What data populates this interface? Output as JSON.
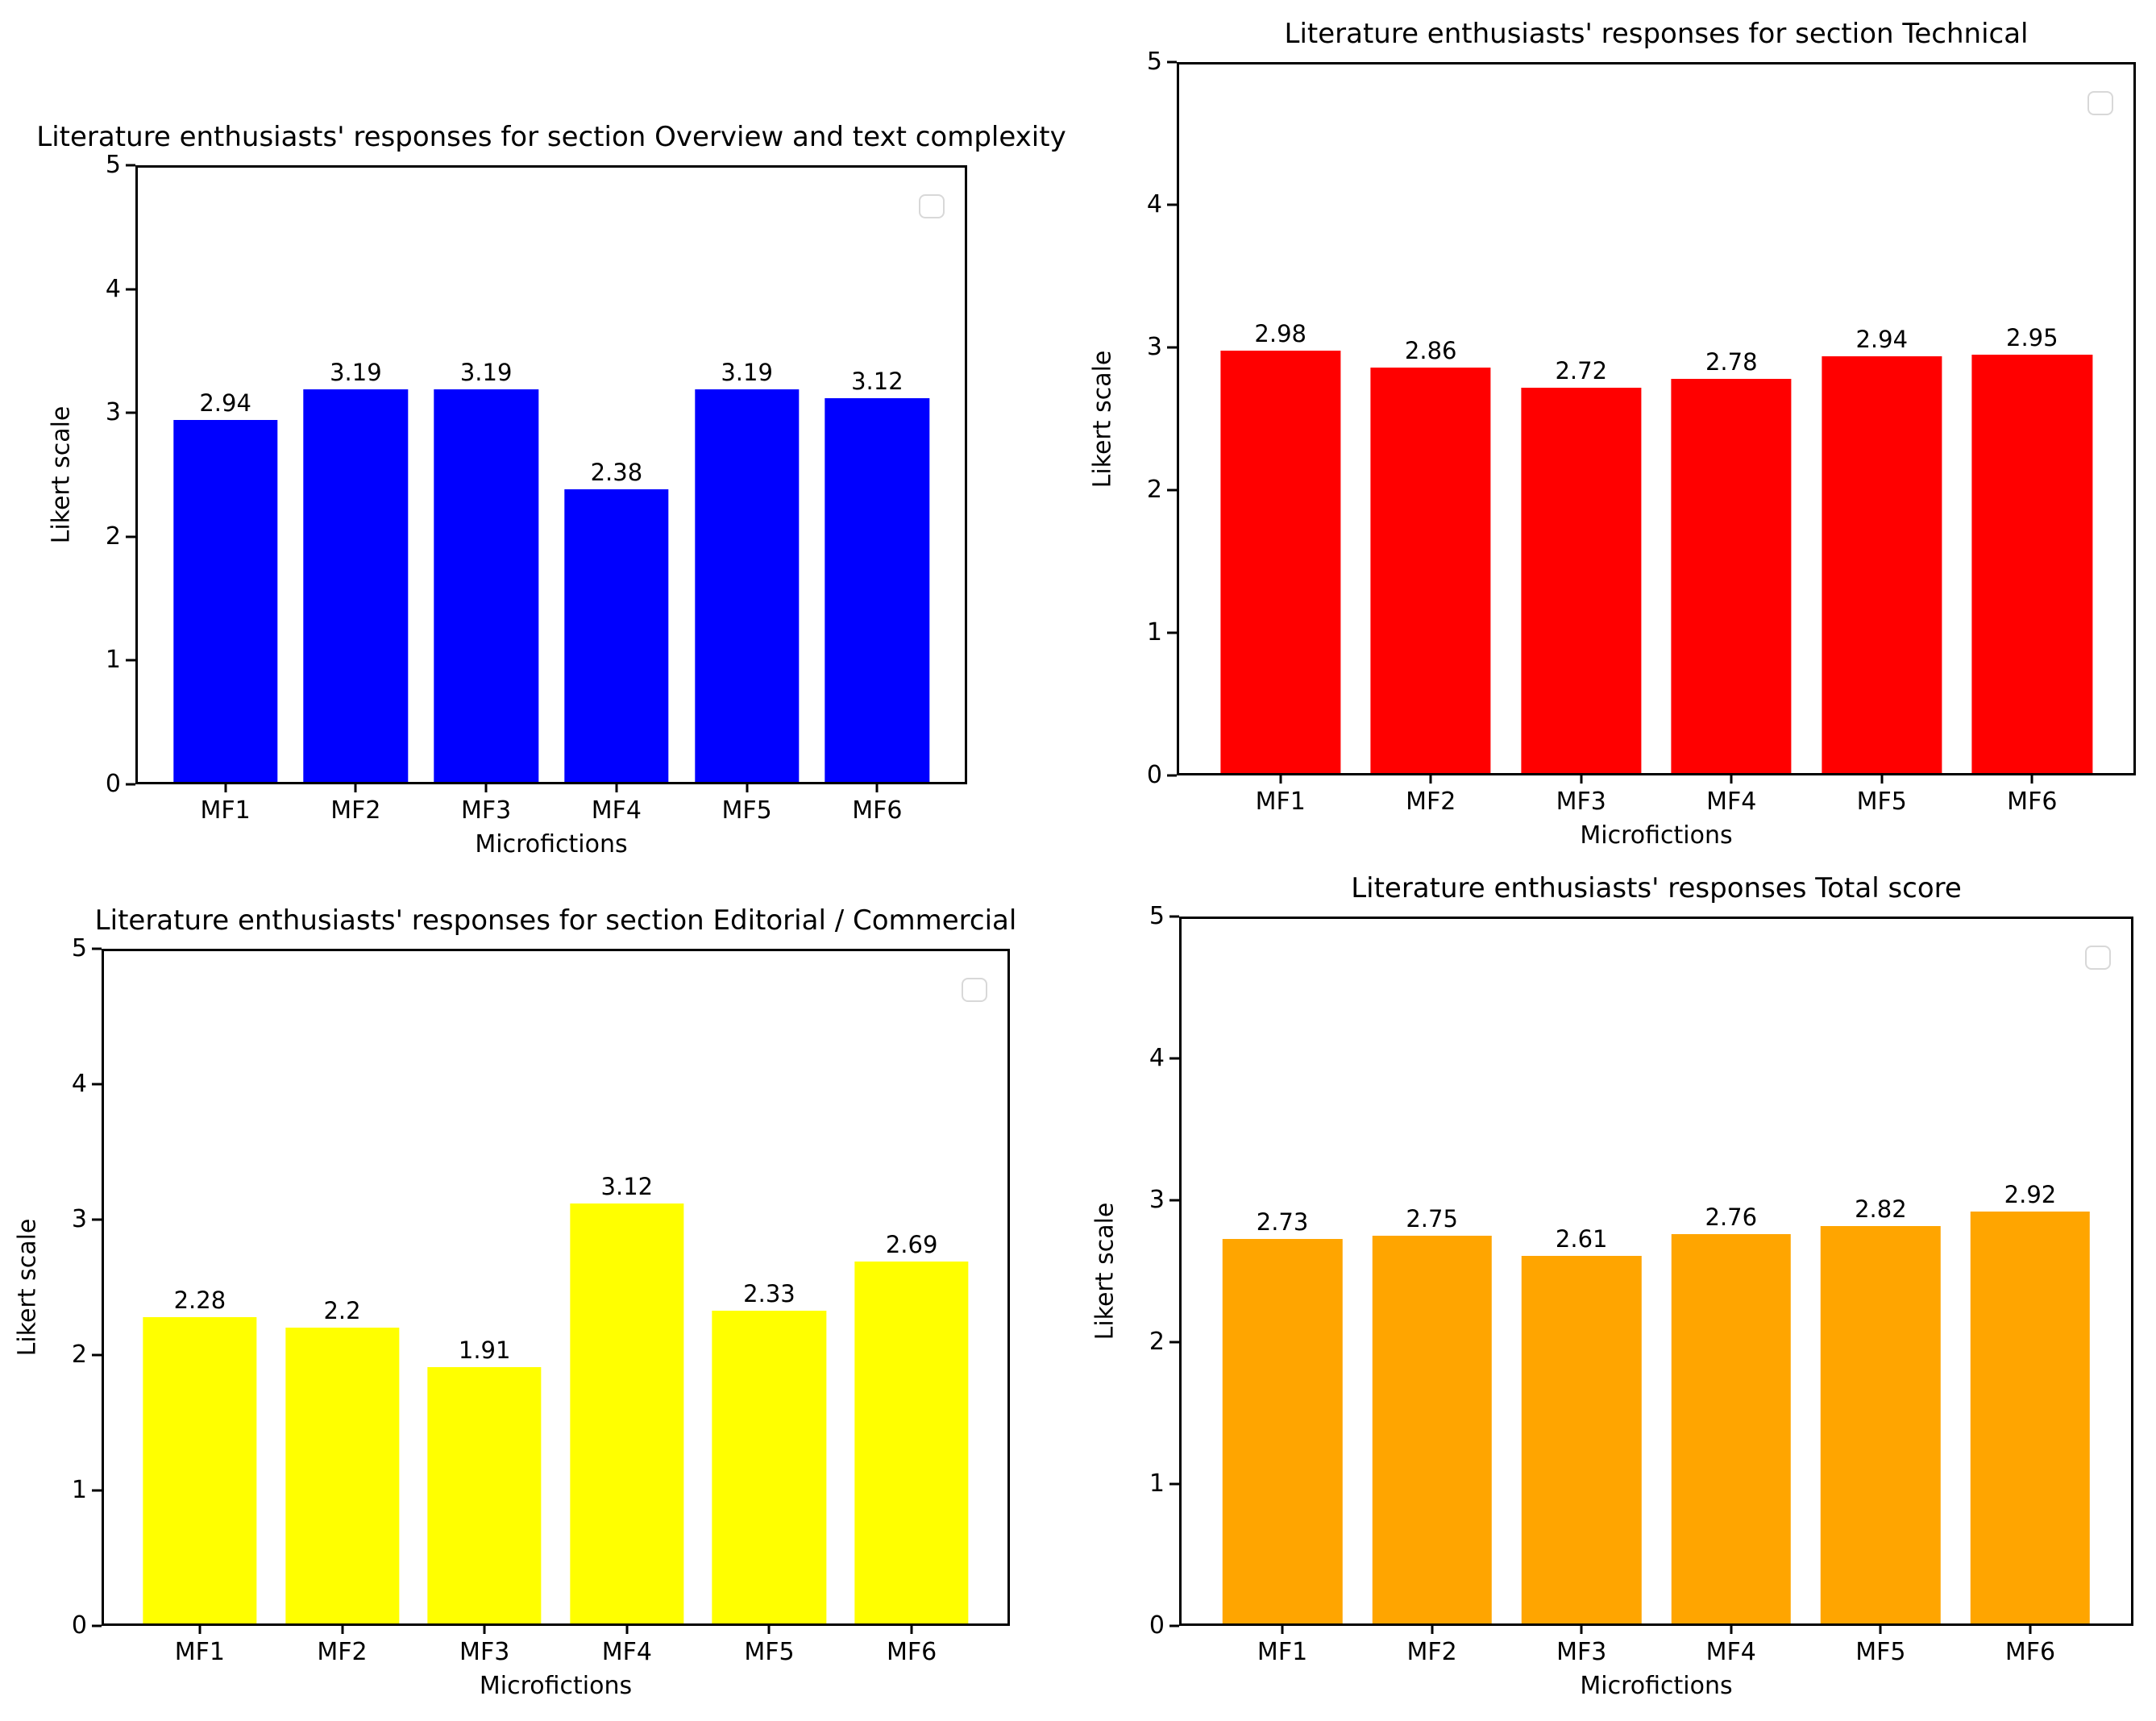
{
  "figure": {
    "background": "#ffffff",
    "layout": "2x2-grid-of-bar-charts"
  },
  "chart_data": [
    {
      "type": "bar",
      "title": "Literature enthusiasts' responses for section Overview and text complexity",
      "xlabel": "Microfictions",
      "ylabel": "Likert scale",
      "categories": [
        "MF1",
        "MF2",
        "MF3",
        "MF4",
        "MF5",
        "MF6"
      ],
      "values": [
        2.94,
        3.19,
        3.19,
        2.38,
        3.19,
        3.12
      ],
      "bar_labels": [
        "2.94",
        "3.19",
        "3.19",
        "2.38",
        "3.19",
        "3.12"
      ],
      "bar_color": "#0000ff",
      "ylim": [
        0,
        5
      ],
      "yticks": [
        0,
        1,
        2,
        3,
        4,
        5
      ],
      "grid": false,
      "legend": {
        "visible": true,
        "entries": [],
        "position": "upper right"
      }
    },
    {
      "type": "bar",
      "title": "Literature enthusiasts' responses for section Technical",
      "xlabel": "Microfictions",
      "ylabel": "Likert scale",
      "categories": [
        "MF1",
        "MF2",
        "MF3",
        "MF4",
        "MF5",
        "MF6"
      ],
      "values": [
        2.98,
        2.86,
        2.72,
        2.78,
        2.94,
        2.95
      ],
      "bar_labels": [
        "2.98",
        "2.86",
        "2.72",
        "2.78",
        "2.94",
        "2.95"
      ],
      "bar_color": "#ff0000",
      "ylim": [
        0,
        5
      ],
      "yticks": [
        0,
        1,
        2,
        3,
        4,
        5
      ],
      "grid": false,
      "legend": {
        "visible": true,
        "entries": [],
        "position": "upper right"
      }
    },
    {
      "type": "bar",
      "title": "Literature enthusiasts' responses for section Editorial / Commercial",
      "xlabel": "Microfictions",
      "ylabel": "Likert scale",
      "categories": [
        "MF1",
        "MF2",
        "MF3",
        "MF4",
        "MF5",
        "MF6"
      ],
      "values": [
        2.28,
        2.2,
        1.91,
        3.12,
        2.33,
        2.69
      ],
      "bar_labels": [
        "2.28",
        "2.2",
        "1.91",
        "3.12",
        "2.33",
        "2.69"
      ],
      "bar_color": "#ffff00",
      "ylim": [
        0,
        5
      ],
      "yticks": [
        0,
        1,
        2,
        3,
        4,
        5
      ],
      "grid": false,
      "legend": {
        "visible": true,
        "entries": [],
        "position": "upper right"
      }
    },
    {
      "type": "bar",
      "title": "Literature enthusiasts' responses Total score",
      "xlabel": "Microfictions",
      "ylabel": "Likert scale",
      "categories": [
        "MF1",
        "MF2",
        "MF3",
        "MF4",
        "MF5",
        "MF6"
      ],
      "values": [
        2.73,
        2.75,
        2.61,
        2.76,
        2.82,
        2.92
      ],
      "bar_labels": [
        "2.73",
        "2.75",
        "2.61",
        "2.76",
        "2.82",
        "2.92"
      ],
      "bar_color": "#ffa500",
      "ylim": [
        0,
        5
      ],
      "yticks": [
        0,
        1,
        2,
        3,
        4,
        5
      ],
      "grid": false,
      "legend": {
        "visible": true,
        "entries": [],
        "position": "upper right"
      }
    }
  ]
}
